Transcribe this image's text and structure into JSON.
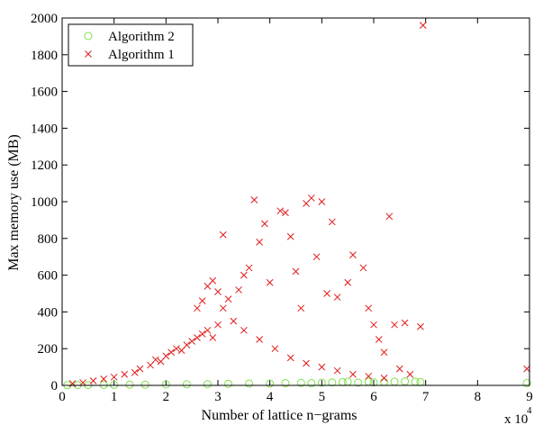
{
  "chart_data": {
    "type": "scatter",
    "xlabel": "Number of lattice n−grams",
    "ylabel": "Max memory use (MB)",
    "x_multiplier_label": "x 10",
    "x_multiplier_exponent": "4",
    "xlim": [
      0,
      9
    ],
    "ylim": [
      0,
      2000
    ],
    "x_ticks": [
      "0",
      "1",
      "2",
      "3",
      "4",
      "5",
      "6",
      "7",
      "8",
      "9"
    ],
    "y_ticks": [
      "0",
      "200",
      "400",
      "600",
      "800",
      "1000",
      "1200",
      "1400",
      "1600",
      "1800",
      "2000"
    ],
    "x_unit_scale": 10000,
    "grid": false,
    "legend_position": "top-left",
    "series": [
      {
        "name": "Algorithm 2",
        "marker": "circle",
        "color": "#7fe04a",
        "points": [
          [
            0.1,
            1
          ],
          [
            0.3,
            2
          ],
          [
            0.5,
            2
          ],
          [
            0.8,
            3
          ],
          [
            1.0,
            3
          ],
          [
            1.3,
            4
          ],
          [
            1.6,
            4
          ],
          [
            2.0,
            5
          ],
          [
            2.4,
            6
          ],
          [
            2.8,
            7
          ],
          [
            3.2,
            8
          ],
          [
            3.6,
            10
          ],
          [
            4.0,
            10
          ],
          [
            4.3,
            12
          ],
          [
            4.6,
            14
          ],
          [
            4.8,
            12
          ],
          [
            5.0,
            15
          ],
          [
            5.2,
            16
          ],
          [
            5.4,
            18
          ],
          [
            5.5,
            20
          ],
          [
            5.7,
            15
          ],
          [
            5.9,
            20
          ],
          [
            6.0,
            16
          ],
          [
            6.2,
            18
          ],
          [
            6.4,
            20
          ],
          [
            6.6,
            22
          ],
          [
            6.8,
            20
          ],
          [
            6.9,
            18
          ],
          [
            8.95,
            12
          ]
        ]
      },
      {
        "name": "Algorithm 1",
        "marker": "x",
        "color": "#e01a1a",
        "points": [
          [
            0.2,
            10
          ],
          [
            0.4,
            15
          ],
          [
            0.6,
            25
          ],
          [
            0.8,
            35
          ],
          [
            1.0,
            45
          ],
          [
            1.2,
            60
          ],
          [
            1.4,
            70
          ],
          [
            1.5,
            90
          ],
          [
            1.7,
            110
          ],
          [
            1.8,
            140
          ],
          [
            1.9,
            130
          ],
          [
            2.0,
            160
          ],
          [
            2.1,
            180
          ],
          [
            2.2,
            200
          ],
          [
            2.3,
            190
          ],
          [
            2.4,
            220
          ],
          [
            2.5,
            240
          ],
          [
            2.6,
            260
          ],
          [
            2.7,
            280
          ],
          [
            2.8,
            300
          ],
          [
            2.9,
            260
          ],
          [
            3.0,
            330
          ],
          [
            2.6,
            420
          ],
          [
            2.7,
            460
          ],
          [
            2.8,
            540
          ],
          [
            2.9,
            570
          ],
          [
            3.0,
            510
          ],
          [
            3.1,
            420
          ],
          [
            3.2,
            470
          ],
          [
            3.1,
            820
          ],
          [
            3.3,
            350
          ],
          [
            3.4,
            520
          ],
          [
            3.5,
            600
          ],
          [
            3.6,
            640
          ],
          [
            3.7,
            1010
          ],
          [
            3.8,
            780
          ],
          [
            3.9,
            880
          ],
          [
            4.0,
            560
          ],
          [
            4.2,
            950
          ],
          [
            4.3,
            940
          ],
          [
            4.4,
            810
          ],
          [
            4.5,
            620
          ],
          [
            4.6,
            420
          ],
          [
            4.7,
            990
          ],
          [
            4.8,
            1020
          ],
          [
            4.9,
            700
          ],
          [
            5.0,
            1000
          ],
          [
            5.1,
            500
          ],
          [
            5.2,
            890
          ],
          [
            5.3,
            480
          ],
          [
            5.5,
            560
          ],
          [
            5.6,
            710
          ],
          [
            5.8,
            640
          ],
          [
            5.9,
            420
          ],
          [
            6.0,
            330
          ],
          [
            6.1,
            250
          ],
          [
            6.2,
            180
          ],
          [
            6.3,
            920
          ],
          [
            6.4,
            330
          ],
          [
            6.5,
            90
          ],
          [
            6.6,
            340
          ],
          [
            6.7,
            60
          ],
          [
            6.9,
            320
          ],
          [
            6.95,
            1960
          ],
          [
            8.95,
            90
          ],
          [
            3.5,
            300
          ],
          [
            3.8,
            250
          ],
          [
            4.1,
            200
          ],
          [
            4.4,
            150
          ],
          [
            4.7,
            120
          ],
          [
            5.0,
            100
          ],
          [
            5.3,
            80
          ],
          [
            5.6,
            60
          ],
          [
            5.9,
            50
          ],
          [
            6.2,
            40
          ]
        ]
      }
    ]
  }
}
